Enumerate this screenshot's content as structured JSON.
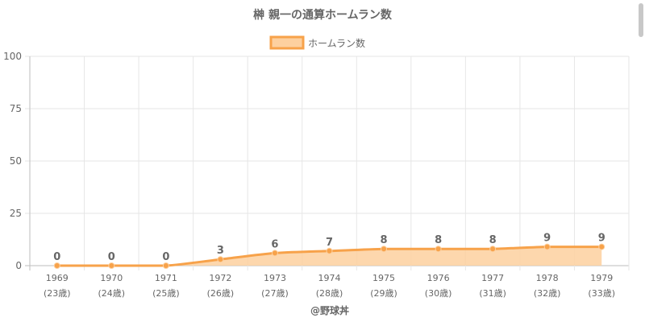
{
  "chart_data": {
    "type": "area",
    "title": "榊 親一の通算ホームラン数",
    "legend": {
      "label": "ホームラン数",
      "placement": "top-center"
    },
    "categories": [
      "1969",
      "1970",
      "1971",
      "1972",
      "1973",
      "1974",
      "1975",
      "1976",
      "1977",
      "1978",
      "1979"
    ],
    "ages": [
      "(23歳)",
      "(24歳)",
      "(25歳)",
      "(26歳)",
      "(27歳)",
      "(28歳)",
      "(29歳)",
      "(30歳)",
      "(31歳)",
      "(32歳)",
      "(33歳)"
    ],
    "series": [
      {
        "name": "ホームラン数",
        "values": [
          0,
          0,
          0,
          3,
          6,
          7,
          8,
          8,
          8,
          9,
          9
        ]
      }
    ],
    "ylim": [
      0,
      100
    ],
    "yticks": [
      0,
      25,
      50,
      75,
      100
    ],
    "grid": true,
    "colors": {
      "line": "#f7a24a",
      "fill": "#fdd09f",
      "text": "#666666",
      "grid": "#e6e6e6"
    },
    "credit": "@野球丼"
  }
}
